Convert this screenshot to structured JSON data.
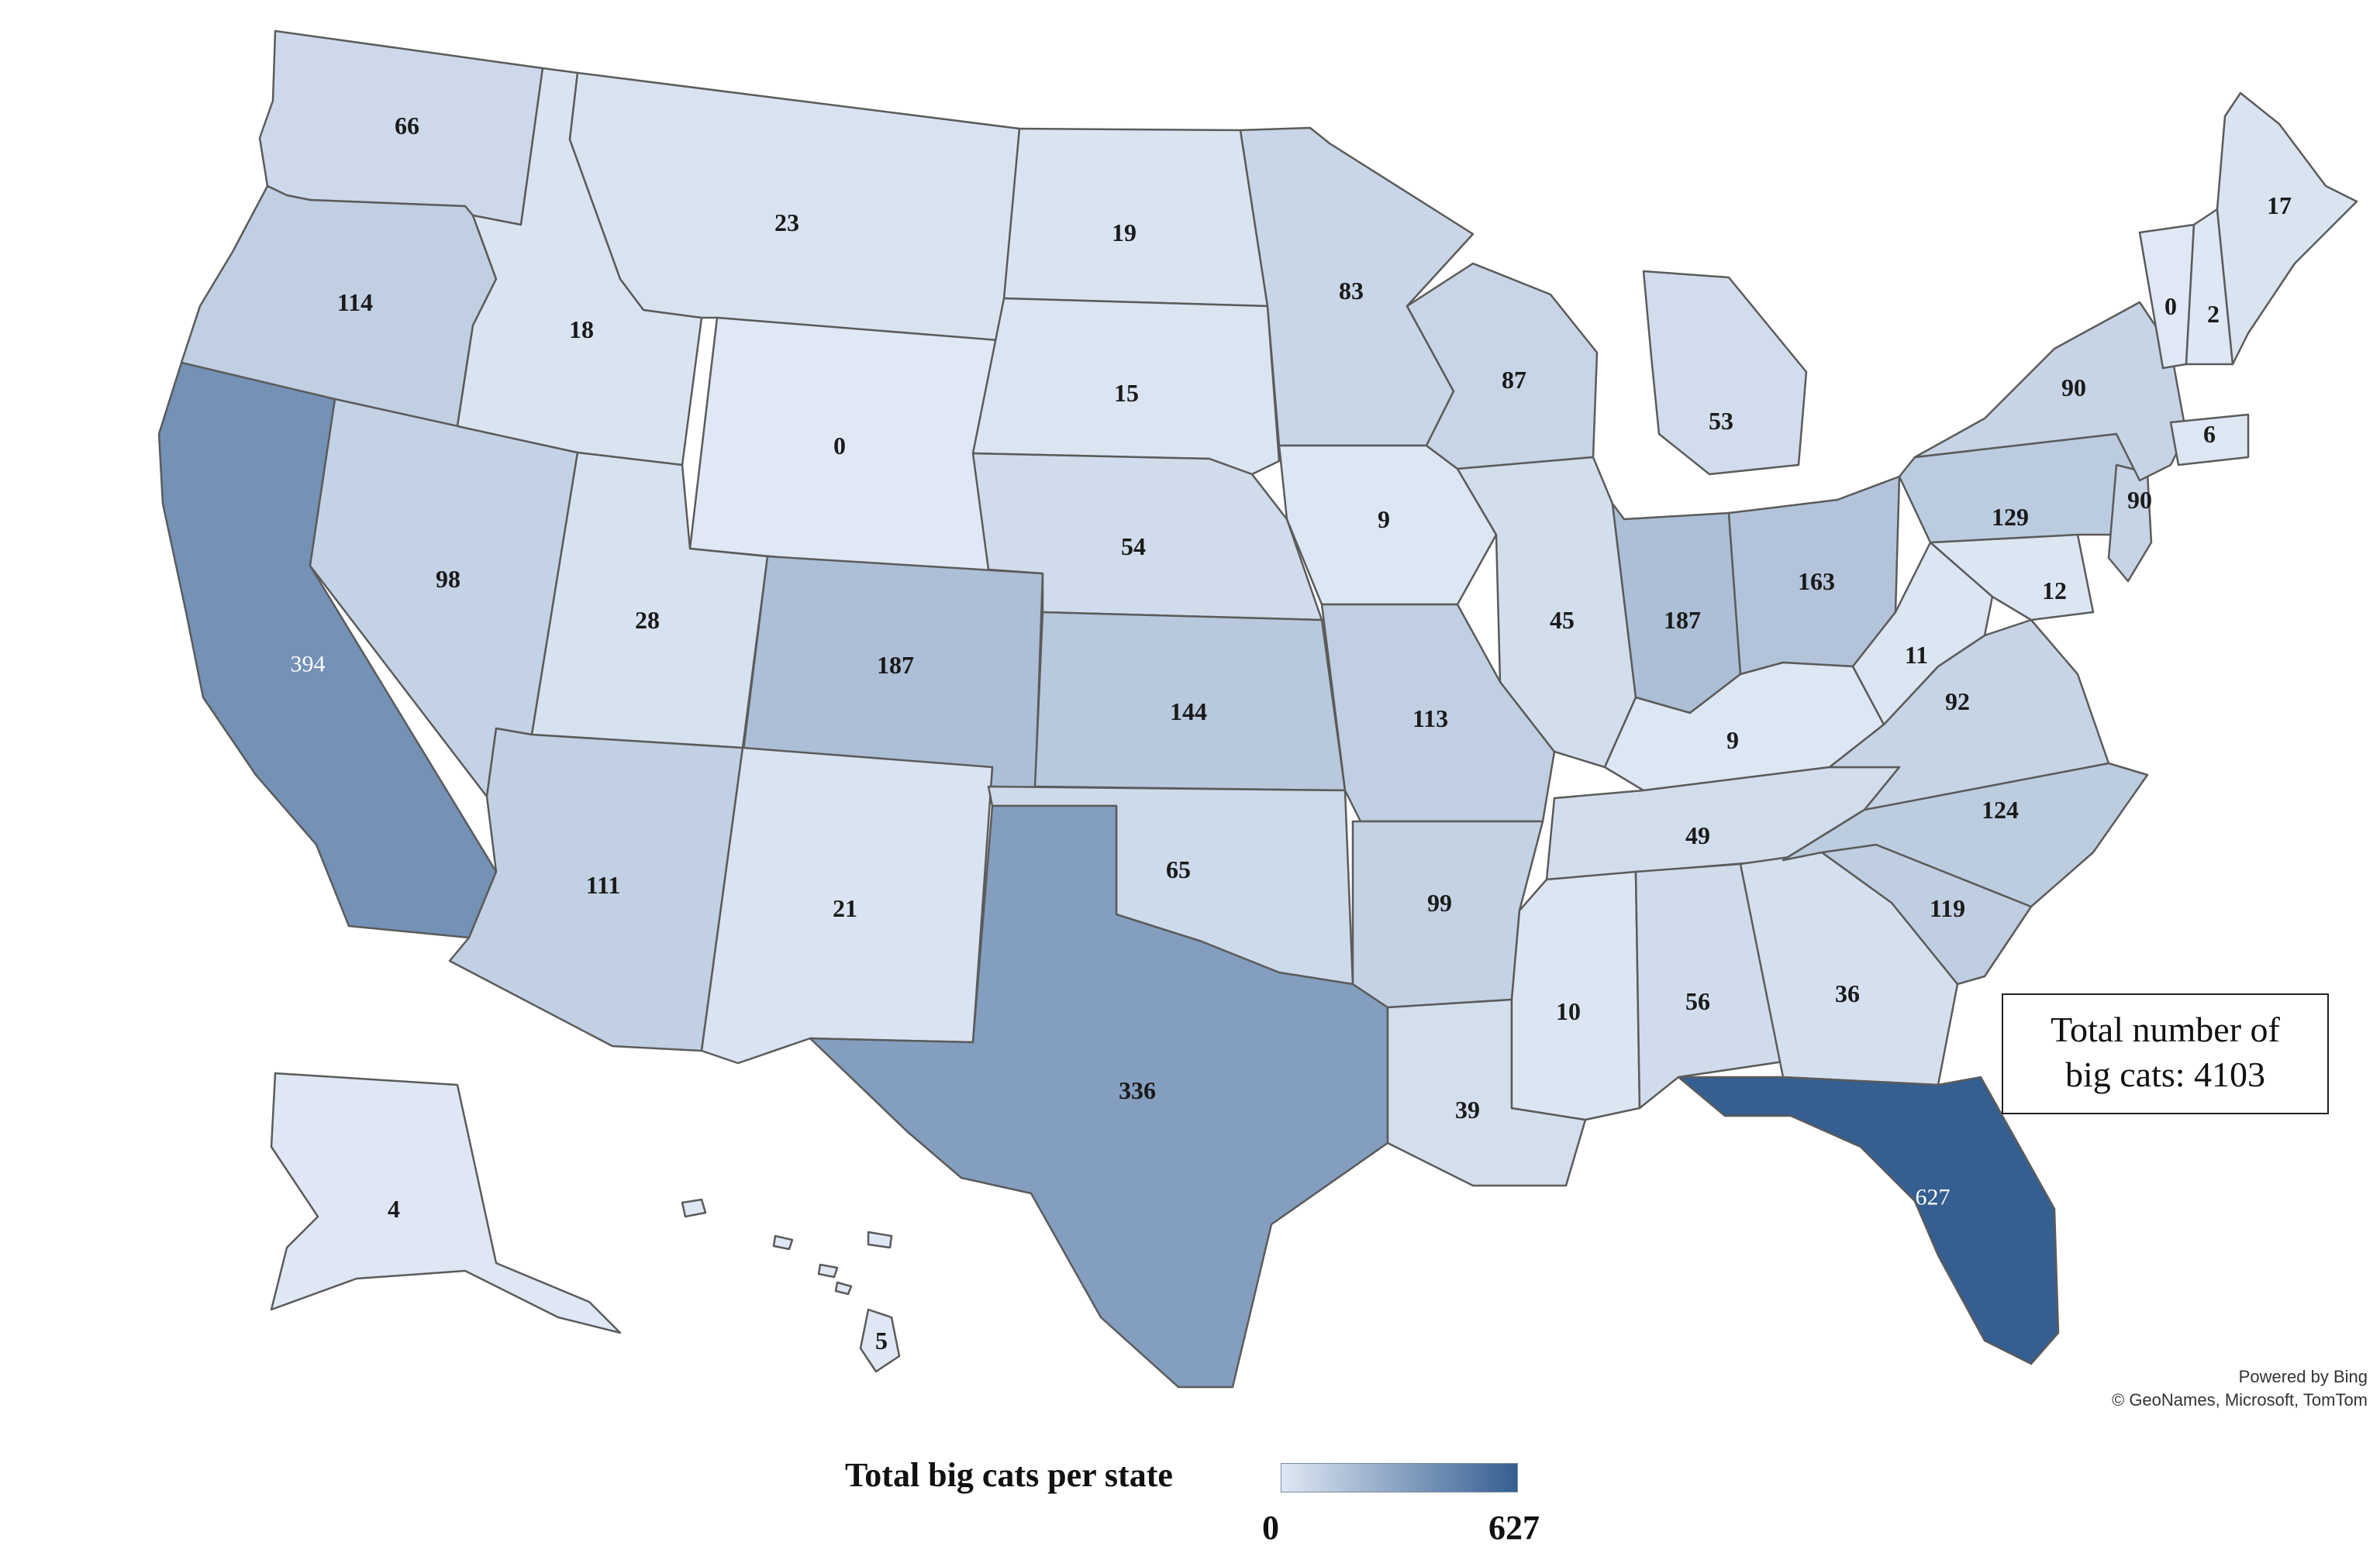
{
  "map": {
    "attribution": [
      "Powered by Bing",
      "© GeoNames, Microsoft, TomTom"
    ],
    "total_box": {
      "line1": "Total number of",
      "line2": "big cats:  4103"
    },
    "legend": {
      "title": "Total big cats per state",
      "min": "0",
      "max": "627",
      "min_color": "#dfe8f4",
      "max_color": "#355e91"
    },
    "states": [
      {
        "id": "WA",
        "value": "66"
      },
      {
        "id": "OR",
        "value": "114"
      },
      {
        "id": "CA",
        "value": "394"
      },
      {
        "id": "NV",
        "value": "98"
      },
      {
        "id": "ID",
        "value": "18"
      },
      {
        "id": "MT",
        "value": "23"
      },
      {
        "id": "WY",
        "value": "0"
      },
      {
        "id": "UT",
        "value": "28"
      },
      {
        "id": "AZ",
        "value": "111"
      },
      {
        "id": "CO",
        "value": "187"
      },
      {
        "id": "NM",
        "value": "21"
      },
      {
        "id": "ND",
        "value": "19"
      },
      {
        "id": "SD",
        "value": "15"
      },
      {
        "id": "NE",
        "value": "54"
      },
      {
        "id": "KS",
        "value": "144"
      },
      {
        "id": "OK",
        "value": "65"
      },
      {
        "id": "TX",
        "value": "336"
      },
      {
        "id": "MN",
        "value": "83"
      },
      {
        "id": "IA",
        "value": "9"
      },
      {
        "id": "MO",
        "value": "113"
      },
      {
        "id": "AR",
        "value": "99"
      },
      {
        "id": "LA",
        "value": "39"
      },
      {
        "id": "WI",
        "value": "87"
      },
      {
        "id": "IL",
        "value": "45"
      },
      {
        "id": "MI",
        "value": "53"
      },
      {
        "id": "IN",
        "value": "187"
      },
      {
        "id": "OH",
        "value": "163"
      },
      {
        "id": "KY",
        "value": "9"
      },
      {
        "id": "TN",
        "value": "49"
      },
      {
        "id": "MS",
        "value": "10"
      },
      {
        "id": "AL",
        "value": "56"
      },
      {
        "id": "GA",
        "value": "36"
      },
      {
        "id": "FL",
        "value": "627"
      },
      {
        "id": "SC",
        "value": "119"
      },
      {
        "id": "NC",
        "value": "124"
      },
      {
        "id": "VA",
        "value": "92"
      },
      {
        "id": "WV",
        "value": "11"
      },
      {
        "id": "MD",
        "value": "12"
      },
      {
        "id": "PA",
        "value": "129"
      },
      {
        "id": "NJ",
        "value": "90"
      },
      {
        "id": "NY",
        "value": "90"
      },
      {
        "id": "CT",
        "value": "6"
      },
      {
        "id": "VT",
        "value": "0"
      },
      {
        "id": "NH",
        "value": "2"
      },
      {
        "id": "ME",
        "value": "17"
      },
      {
        "id": "AK",
        "value": "4"
      },
      {
        "id": "HI",
        "value": "5"
      }
    ]
  }
}
